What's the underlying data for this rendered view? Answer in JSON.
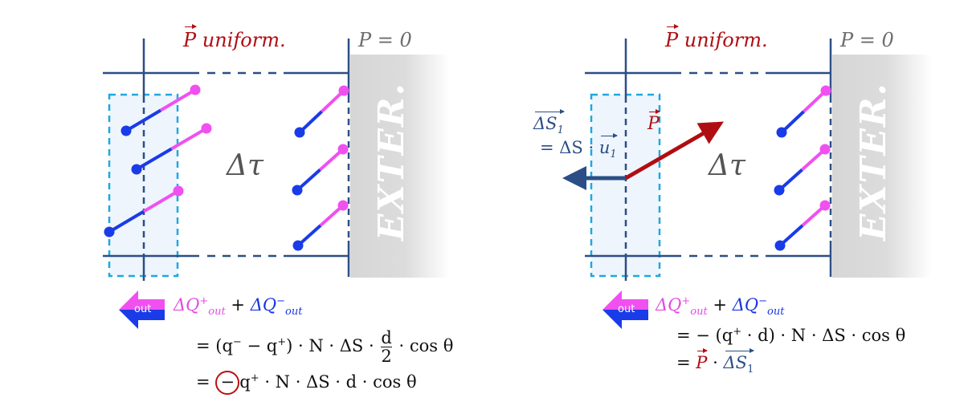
{
  "colors": {
    "frame": "#2b4e86",
    "positive": "#f050f0",
    "negative": "#1a3be8",
    "polarization": "#b00d12",
    "region": "#1fa8e0",
    "exterior": "#d9d9d9"
  },
  "left": {
    "p_label": "P",
    "uniform_label": "uniform.",
    "p_zero_label": "P = 0",
    "volume_label": "Δτ",
    "exterior_label": "EXTER.",
    "out_icon": "out-arrow-icon",
    "out_label": "out",
    "eq_head_plus": "ΔQ",
    "eq_head_plus_sup": "+",
    "eq_head_plus_sub": "out",
    "eq_head_op": "+",
    "eq_head_minus": "ΔQ",
    "eq_head_minus_sup": "−",
    "eq_head_minus_sub": "out",
    "eq_line1_a": "= (q",
    "eq_line1_sup1": "−",
    "eq_line1_b": " − q",
    "eq_line1_sup2": "+",
    "eq_line1_c": ") · N · ΔS ·",
    "frac_num": "d",
    "frac_den": "2",
    "eq_line1_d": "· cos θ",
    "eq_line2_a": "=",
    "eq_line2_circled": "−",
    "eq_line2_b": "q",
    "eq_line2_sup": "+",
    "eq_line2_c": " · N · ΔS · d · cos θ"
  },
  "right": {
    "p_label": "P",
    "uniform_label": "uniform.",
    "p_zero_label": "P = 0",
    "volume_label": "Δτ",
    "exterior_label": "EXTER.",
    "ds1_label": "ΔS",
    "ds1_sub": "1",
    "ds1_eq": "= ΔS ·",
    "u1_label": "u",
    "u1_sub": "1",
    "p_arrow_label": "P",
    "out_icon": "out-arrow-icon",
    "out_label": "out",
    "eq_head_plus": "ΔQ",
    "eq_head_plus_sup": "+",
    "eq_head_plus_sub": "out",
    "eq_head_op": "+",
    "eq_head_minus": "ΔQ",
    "eq_head_minus_sup": "−",
    "eq_head_minus_sub": "out",
    "eq_line1_a": "= −  (q",
    "eq_line1_sup": "+",
    "eq_line1_b": " · d) · N · ΔS · cos θ",
    "eq_line2_a": "=",
    "eq_line2_p": "P",
    "eq_line2_dot": "·",
    "eq_line2_ds": "ΔS",
    "eq_line2_sub": "1"
  }
}
